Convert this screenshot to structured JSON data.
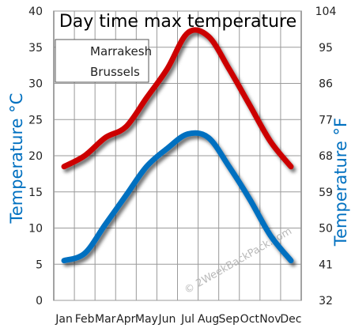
{
  "chart_data": {
    "type": "line",
    "title": "Day time max temperature",
    "categories": [
      "Jan",
      "Feb",
      "Mar",
      "Apr",
      "May",
      "Jun",
      "Jul",
      "Aug",
      "Sep",
      "Oct",
      "Nov",
      "Dec"
    ],
    "series": [
      {
        "name": "Marrakesh",
        "values": [
          18.5,
          20,
          22.5,
          24,
          28,
          32,
          37,
          36.5,
          32,
          27,
          22,
          18.5
        ],
        "color": "#cc0000"
      },
      {
        "name": "Brussels",
        "values": [
          5.5,
          6.5,
          10.5,
          14.5,
          18.5,
          21,
          23,
          22.5,
          18.5,
          14,
          9,
          5.5
        ],
        "color": "#0070c0"
      }
    ],
    "ylabel": "Temperature °C",
    "y2label": "Temperature °F",
    "ylim": [
      0,
      40
    ],
    "yticks": [
      "0",
      "5",
      "10",
      "15",
      "20",
      "25",
      "30",
      "35",
      "40"
    ],
    "y2ticks": [
      "32",
      "41",
      "50",
      "59",
      "68",
      "77",
      "86",
      "95",
      "104"
    ],
    "grid": true,
    "legend_position": "top-left",
    "axis_label_color": "#0070c0",
    "watermark": "© 2WeekBackPack.com"
  }
}
